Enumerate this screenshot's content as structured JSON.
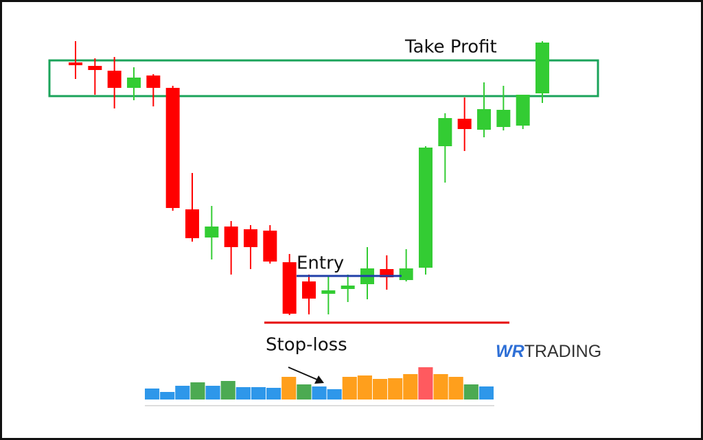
{
  "chart_data": [
    {
      "type": "candlestick",
      "categories": [
        null,
        null,
        null,
        null,
        null,
        null,
        null,
        null,
        null,
        null,
        null,
        null,
        null,
        null,
        null,
        null,
        null,
        null,
        null,
        null,
        null,
        null,
        null,
        null,
        null
      ],
      "open": [
        81.8,
        80.8,
        79.4,
        74.4,
        78,
        74.4,
        39,
        30.8,
        34,
        33.2,
        32.8,
        23.6,
        18,
        14.4,
        15.8,
        17.2,
        21.6,
        18.4,
        22,
        57.4,
        65.4,
        62.2,
        63,
        63.4,
        72.8
      ],
      "high": [
        88,
        83,
        83.4,
        80.4,
        78.4,
        75,
        49.6,
        40,
        35.6,
        34.4,
        34.4,
        26,
        20,
        19.4,
        20,
        28,
        25.6,
        27.4,
        57.4,
        67,
        71.6,
        76,
        75,
        72.4,
        88
      ],
      "low": [
        77,
        72.4,
        68.4,
        70.8,
        69,
        38.6,
        29.6,
        24.4,
        20,
        21.6,
        23.2,
        8.2,
        8.4,
        8.4,
        12,
        12.8,
        15.6,
        18,
        20,
        46.8,
        56,
        60,
        62,
        62.4,
        70
      ],
      "close": [
        81,
        79.6,
        74.4,
        77.4,
        74.4,
        39.4,
        30.6,
        34,
        28,
        28,
        23.8,
        8.6,
        13,
        15.4,
        16.8,
        21.8,
        19.2,
        21.8,
        57,
        65.6,
        62.4,
        68.2,
        68,
        72.4,
        87.6
      ],
      "up_color": "#33cc33",
      "down_color": "#ff0000",
      "ylim": [
        0,
        100
      ],
      "zone": {
        "label": "Take Profit",
        "range": [
          72,
          82.4
        ],
        "color": "#1aa35a"
      },
      "levels": [
        {
          "label": "Entry",
          "value": 19.6,
          "color": "#1f3fa8"
        },
        {
          "label": "Stop-loss",
          "value": 6,
          "color": "#e60000"
        }
      ]
    },
    {
      "type": "bar",
      "values": [
        16,
        11,
        20,
        25,
        20,
        27,
        18,
        18,
        17,
        33,
        22,
        19,
        15,
        33,
        35,
        30,
        31,
        37,
        47,
        37,
        33,
        22,
        19
      ],
      "colors": [
        "#2e97ea",
        "#2e97ea",
        "#2e97ea",
        "#4caa52",
        "#2e97ea",
        "#4caa52",
        "#2e97ea",
        "#2e97ea",
        "#2e97ea",
        "#ff9f1c",
        "#4caa52",
        "#2e97ea",
        "#2e97ea",
        "#ff9f1c",
        "#ff9f1c",
        "#ff9f1c",
        "#ff9f1c",
        "#ff9f1c",
        "#ff5a5f",
        "#ff9f1c",
        "#ff9f1c",
        "#4caa52",
        "#2e97ea"
      ],
      "ylim": [
        0,
        50
      ]
    }
  ],
  "logo": {
    "brand": "WR",
    "name": "TRADING"
  }
}
